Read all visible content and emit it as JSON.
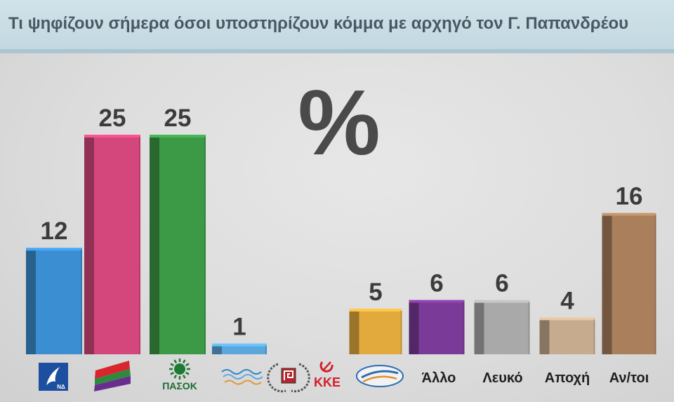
{
  "chart_data": {
    "type": "bar",
    "title": "Τι ψηφίζουν σήμερα όσοι υποστηρίζουν κόμμα με αρχηγό τον Γ. Παπανδρέου",
    "unit": "%",
    "categories": [
      {
        "logo": "nd-logo",
        "logo_text": "ΝΔ"
      },
      {
        "logo": "syriza-logo"
      },
      {
        "logo": "pasok-logo",
        "logo_text": "ΠΑΣΟΚ"
      },
      {
        "logo": "potami-logo"
      },
      {
        "logo": "golden-dawn-logo"
      },
      {
        "logo": "kke-logo",
        "logo_text": "ΚΚΕ"
      },
      {
        "logo": "anel-logo"
      },
      {
        "label": "Άλλο"
      },
      {
        "label": "Λευκό"
      },
      {
        "label": "Αποχή"
      },
      {
        "label": "Αν/τοι"
      }
    ],
    "values": [
      12,
      25,
      25,
      1,
      null,
      null,
      5,
      6,
      6,
      4,
      16
    ],
    "colors": [
      "#3b8ed1",
      "#d4477c",
      "#3c9a47",
      "#5aa7dc",
      null,
      null,
      "#e2aa3c",
      "#7a3a98",
      "#a9a9a9",
      "#c7ab8e",
      "#a97f5c"
    ],
    "grid": false,
    "legend": "none"
  }
}
